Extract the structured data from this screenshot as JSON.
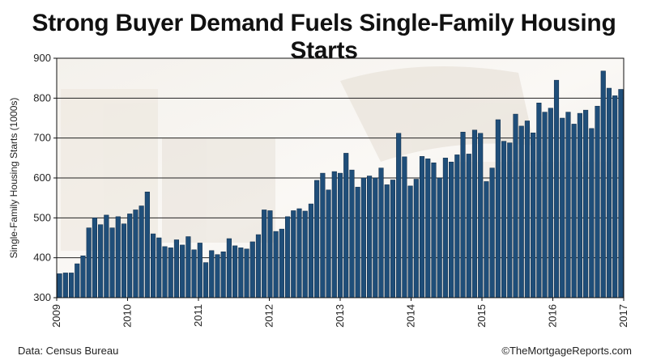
{
  "chart_data": {
    "type": "bar",
    "title": "Strong Buyer Demand Fuels Single-Family Housing Starts",
    "xlabel": "",
    "ylabel": "Single-Family Housing Starts (1000s)",
    "ylim": [
      300,
      900
    ],
    "yticks": [
      "300",
      "400",
      "500",
      "600",
      "700",
      "800",
      "900"
    ],
    "xticks": [
      "2009",
      "2010",
      "2011",
      "2012",
      "2013",
      "2014",
      "2015",
      "2016",
      "2017"
    ],
    "grid": true,
    "bar_color": "#1f4e79",
    "series": [
      {
        "values": [
          360,
          362,
          362,
          385,
          405,
          475,
          500,
          483,
          507,
          475,
          503,
          485,
          510,
          520,
          530,
          565,
          460,
          450,
          428,
          425,
          445,
          432,
          453,
          420,
          437,
          388,
          418,
          408,
          415,
          448,
          430,
          425,
          422,
          440,
          458,
          520,
          518,
          466,
          472,
          503,
          518,
          523,
          517,
          535,
          594,
          612,
          570,
          616,
          612,
          662,
          620,
          577,
          600,
          605,
          600,
          625,
          583,
          595,
          712,
          653,
          580,
          597,
          654,
          648,
          638,
          600,
          650,
          640,
          658,
          715,
          660,
          720,
          712,
          591,
          625,
          746,
          692,
          688,
          760,
          730,
          743,
          713,
          788,
          765,
          775,
          845,
          750,
          765,
          735,
          762,
          770,
          724,
          780,
          868,
          825,
          806,
          822
        ]
      }
    ]
  },
  "source": "Data: Census Bureau",
  "credit": "©TheMortgageReports.com"
}
